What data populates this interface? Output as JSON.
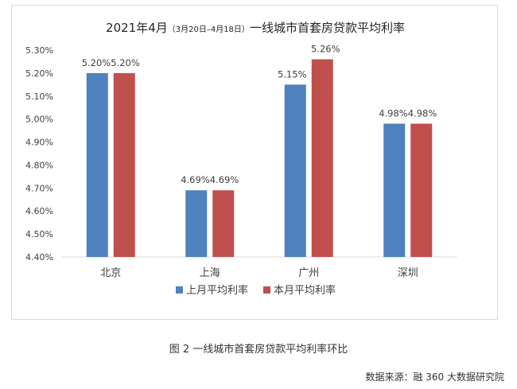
{
  "chart_data": {
    "type": "bar",
    "title": "2021年4月",
    "subtitle": "（3月20日–4月18日）",
    "title_suffix": "一线城市首套房贷款平均利率",
    "categories": [
      "北京",
      "上海",
      "广州",
      "深圳"
    ],
    "series": [
      {
        "name": "上月平均利率",
        "color": "#4e81bd",
        "values": [
          5.2,
          4.69,
          5.15,
          4.98
        ]
      },
      {
        "name": "本月平均利率",
        "color": "#c0504d",
        "values": [
          5.2,
          4.69,
          5.26,
          4.98
        ]
      }
    ],
    "ylim": [
      4.4,
      5.3
    ],
    "ytick_step": 0.1,
    "value_format": "percent_2dp",
    "grid": false,
    "legend_position": "bottom"
  },
  "caption": "图 2  一线城市首套房贷款平均利率环比",
  "source": "数据来源：融 360 大数据研究院"
}
